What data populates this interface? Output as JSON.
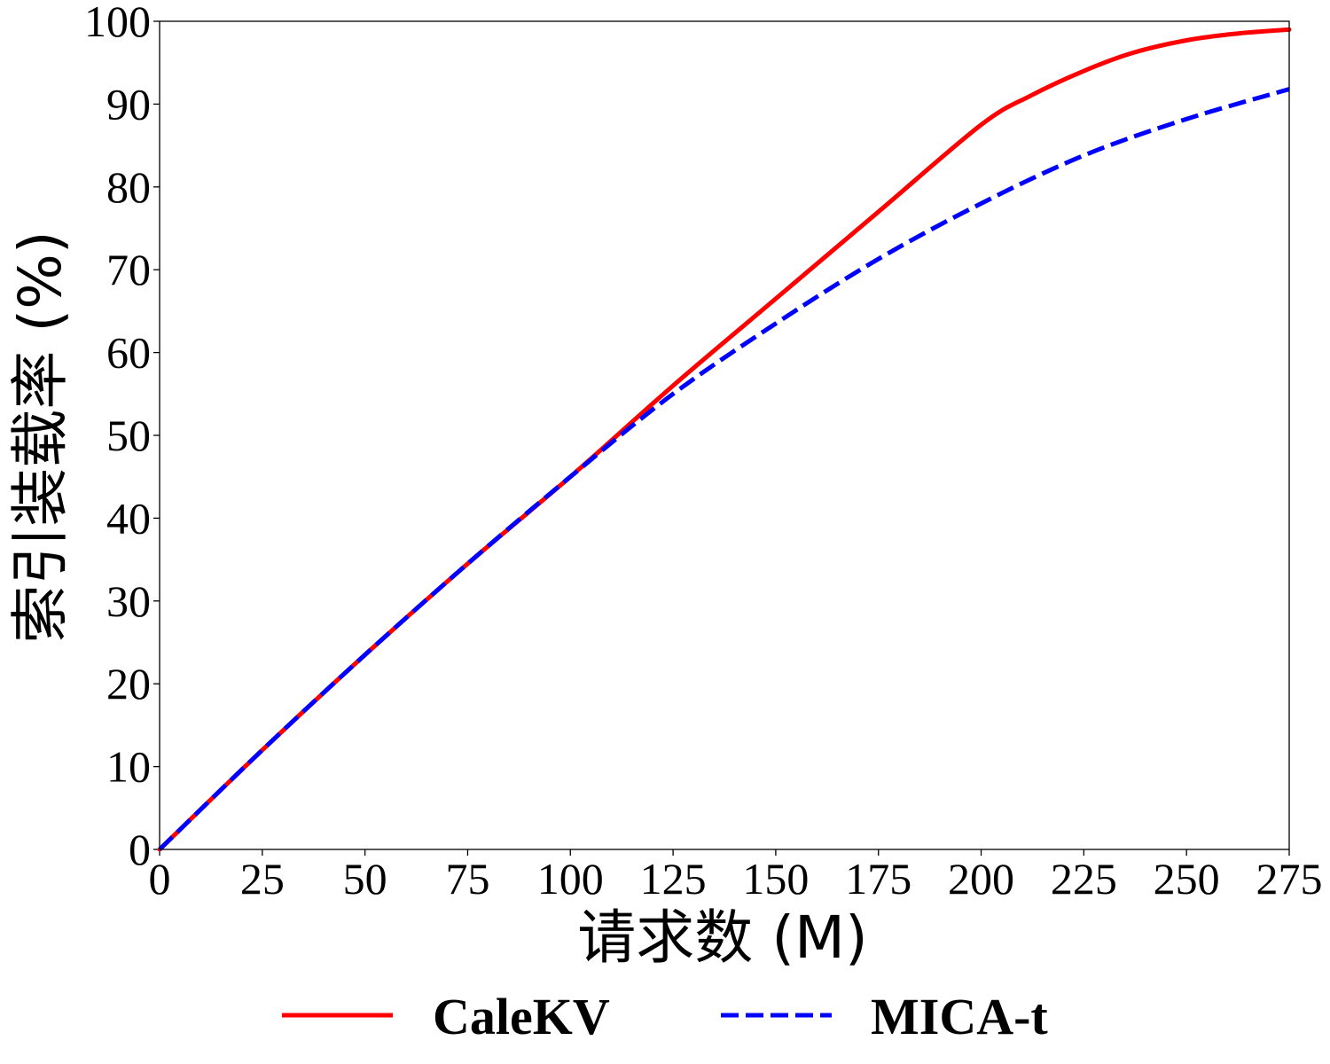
{
  "chart_data": {
    "type": "line",
    "title": "",
    "xlabel": "请求数 (M)",
    "ylabel": "索引装载率 (%)",
    "xlim": [
      0,
      275
    ],
    "ylim": [
      0,
      100
    ],
    "xticks": [
      0,
      25,
      50,
      75,
      100,
      125,
      150,
      175,
      200,
      225,
      250,
      275
    ],
    "yticks": [
      0,
      10,
      20,
      30,
      40,
      50,
      60,
      70,
      80,
      90,
      100
    ],
    "grid": false,
    "legend_position": "bottom",
    "series": [
      {
        "name": "CaleKV",
        "color": "#ff0000",
        "style": "solid",
        "x": [
          0,
          25,
          50,
          75,
          100,
          125,
          150,
          175,
          200,
          212,
          225,
          237,
          250,
          262,
          275
        ],
        "y": [
          0,
          12,
          23.5,
          34.5,
          45,
          56,
          66.5,
          77,
          87.5,
          91,
          94,
          96.2,
          97.7,
          98.5,
          99
        ]
      },
      {
        "name": "MICA-t",
        "color": "#0000ff",
        "style": "dashed",
        "x": [
          0,
          25,
          50,
          75,
          100,
          125,
          150,
          175,
          200,
          225,
          250,
          275
        ],
        "y": [
          0,
          12,
          23.5,
          34.5,
          45,
          55,
          63.5,
          71.3,
          78,
          83.8,
          88.2,
          91.8
        ]
      }
    ]
  }
}
